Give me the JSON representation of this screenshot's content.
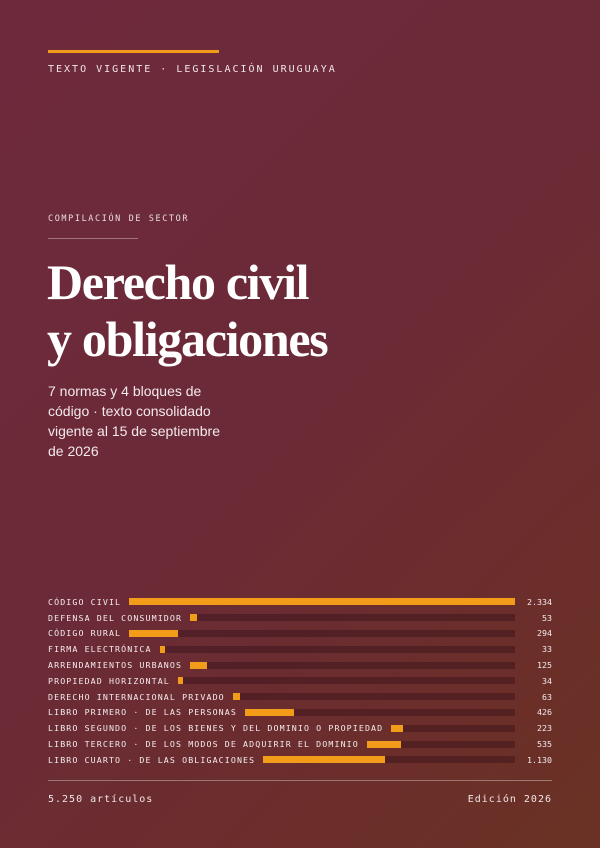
{
  "header": {
    "top_label": "TEXTO VIGENTE · LEGISLACIÓN URUGUAYA",
    "kicker": "COMPILACIÓN DE SECTOR"
  },
  "title": {
    "line1": "Derecho civil",
    "line2": "y obligaciones"
  },
  "subtitle": "7 normas y 4 bloques de código · texto consolidado vigente al 15 de septiembre de 2026",
  "colors": {
    "accent": "#f39c1a",
    "background": "#6b2a38"
  },
  "chart_data": {
    "type": "bar",
    "orientation": "horizontal",
    "categories": [
      "CÓDIGO CIVIL",
      "DEFENSA DEL CONSUMIDOR",
      "CÓDIGO RURAL",
      "FIRMA ELECTRÓNICA",
      "ARRENDAMIENTOS URBANOS",
      "PROPIEDAD HORIZONTAL",
      "DERECHO INTERNACIONAL PRIVADO",
      "LIBRO PRIMERO · DE LAS PERSONAS",
      "LIBRO SEGUNDO · DE LOS BIENES Y DEL DOMINIO O PROPIEDAD",
      "LIBRO TERCERO · DE LOS MODOS DE ADQUIRIR EL DOMINIO",
      "LIBRO CUARTO · DE LAS OBLIGACIONES"
    ],
    "values": [
      2334,
      53,
      294,
      33,
      125,
      34,
      63,
      426,
      223,
      535,
      1130
    ],
    "value_labels": [
      "2.334",
      "53",
      "294",
      "33",
      "125",
      "34",
      "63",
      "426",
      "223",
      "535",
      "1.130"
    ],
    "xlim": [
      0,
      2334
    ]
  },
  "footer": {
    "left": "5.250 artículos",
    "right": "Edición 2026"
  }
}
